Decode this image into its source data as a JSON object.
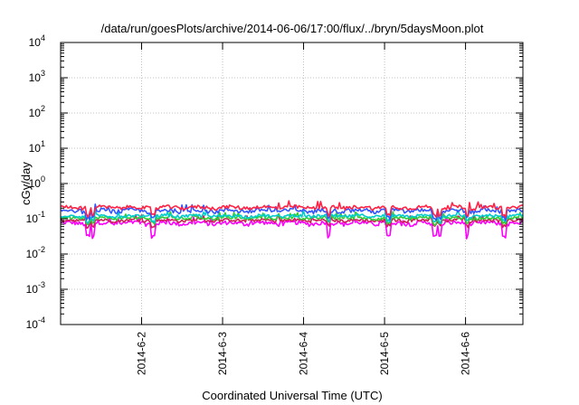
{
  "chart_data": {
    "type": "line",
    "title": "/data/run/goesPlots/archive/2014-06-06/17:00/flux/../bryn/5daysMoon.plot",
    "xlabel": "Coordinated Universal Time (UTC)",
    "ylabel": "cGy/day",
    "yscale": "log",
    "ylim_exp": [
      -4,
      4
    ],
    "y_ticks": [
      {
        "base": "10",
        "exp": "4"
      },
      {
        "base": "10",
        "exp": "3"
      },
      {
        "base": "10",
        "exp": "2"
      },
      {
        "base": "10",
        "exp": "1"
      },
      {
        "base": "10",
        "exp": "0"
      },
      {
        "base": "10",
        "exp": "-1"
      },
      {
        "base": "10",
        "exp": "-2"
      },
      {
        "base": "10",
        "exp": "-3"
      },
      {
        "base": "10",
        "exp": "-4"
      }
    ],
    "xlim": [
      "2014-06-01 00:00",
      "2014-06-06 17:00"
    ],
    "x_ticks": [
      "2014-6-2",
      "2014-6-3",
      "2014-6-4",
      "2014-6-5",
      "2014-6-6"
    ],
    "x_tick_dates": [
      "2014-06-02",
      "2014-06-03",
      "2014-06-04",
      "2014-06-05",
      "2014-06-06"
    ],
    "grid": true,
    "legend": "none",
    "series": [
      {
        "color": "#ff00ff",
        "base": 0.075,
        "dip_min": 0.03,
        "noise": 0.14
      },
      {
        "color": "#cc2255",
        "base": 0.09,
        "dip_min": 0.06,
        "noise": 0.1
      },
      {
        "color": "#33cc33",
        "base": 0.105,
        "dip_min": 0.07,
        "noise": 0.1
      },
      {
        "color": "#00cccc",
        "base": 0.12,
        "dip_min": 0.08,
        "noise": 0.1
      },
      {
        "color": "#3355ff",
        "base": 0.17,
        "dip_min": 0.1,
        "noise": 0.14
      },
      {
        "color": "#ff2244",
        "base": 0.21,
        "dip_min": 0.12,
        "noise": 0.12
      }
    ]
  }
}
